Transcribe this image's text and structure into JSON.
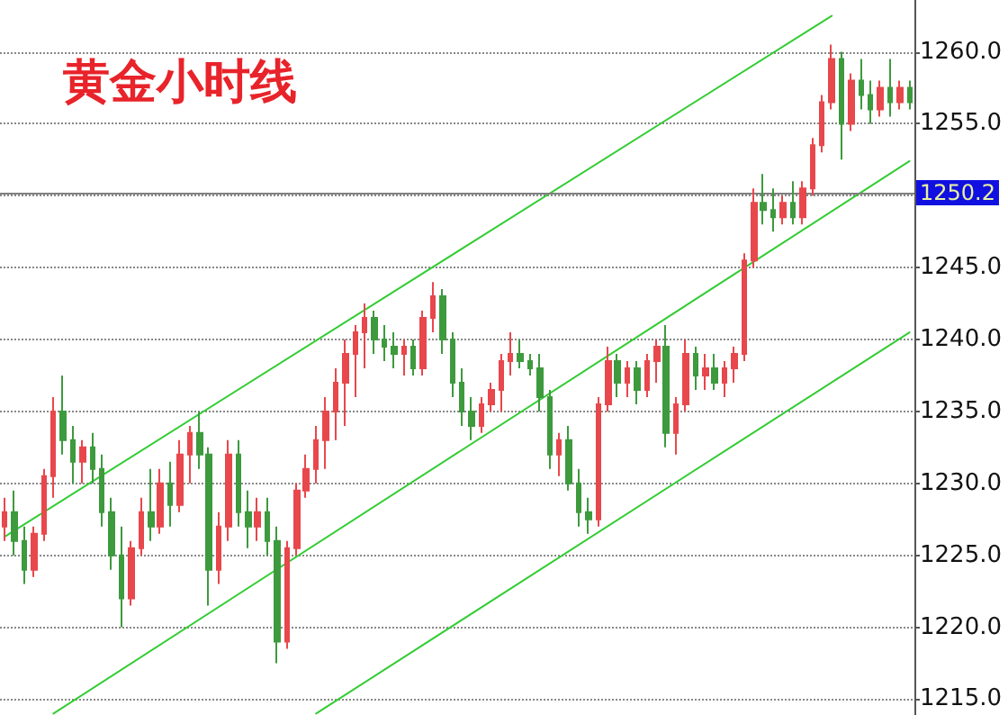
{
  "chart_data": {
    "type": "candlestick",
    "title": "黄金小时线",
    "categories": [
      null,
      null,
      null,
      null,
      null,
      null,
      null,
      null,
      null,
      null,
      null,
      null,
      null,
      null,
      null,
      null,
      null,
      null,
      null,
      null,
      null,
      null,
      null,
      null,
      null,
      null,
      null,
      null,
      null,
      null,
      null,
      null,
      null,
      null,
      null,
      null,
      null,
      null,
      null,
      null,
      null,
      null,
      null,
      null,
      null,
      null,
      null,
      null,
      null,
      null,
      null,
      null,
      null,
      null,
      null,
      null,
      null,
      null,
      null,
      null,
      null,
      null,
      null,
      null,
      null,
      null,
      null,
      null,
      null,
      null,
      null,
      null,
      null,
      null,
      null,
      null,
      null,
      null,
      null,
      null,
      null,
      null,
      null,
      null,
      null,
      null,
      null,
      null,
      null,
      null,
      null,
      null,
      null,
      null
    ],
    "series": [
      {
        "ohlc": [
          [
            1227,
            1229,
            1226,
            1228
          ],
          [
            1228,
            1229.5,
            1225,
            1226
          ],
          [
            1226,
            1227,
            1223,
            1224
          ],
          [
            1224,
            1227,
            1223.5,
            1226.5
          ],
          [
            1226.5,
            1231,
            1226,
            1230.5
          ],
          [
            1230.5,
            1236,
            1229,
            1235
          ],
          [
            1235,
            1237.5,
            1232,
            1233
          ],
          [
            1233,
            1234,
            1230,
            1231.5
          ],
          [
            1231.5,
            1233,
            1230,
            1232.5
          ],
          [
            1232.5,
            1233.5,
            1230,
            1231
          ],
          [
            1231,
            1232,
            1227,
            1228
          ],
          [
            1228,
            1229,
            1224,
            1225
          ],
          [
            1225,
            1227,
            1220,
            1222
          ],
          [
            1222,
            1226,
            1221.5,
            1225.5
          ],
          [
            1225.5,
            1229,
            1225,
            1228
          ],
          [
            1228,
            1231,
            1226,
            1227
          ],
          [
            1227,
            1231,
            1226.5,
            1230
          ],
          [
            1230,
            1231.5,
            1227,
            1228.5
          ],
          [
            1228.5,
            1233,
            1228,
            1232
          ],
          [
            1232,
            1234,
            1230,
            1233.5
          ],
          [
            1233.5,
            1235,
            1231,
            1232
          ],
          [
            1232,
            1232.5,
            1221.5,
            1224
          ],
          [
            1224,
            1228,
            1223,
            1227
          ],
          [
            1227,
            1233,
            1226,
            1232
          ],
          [
            1232,
            1233,
            1227,
            1228
          ],
          [
            1228,
            1229.5,
            1225.5,
            1227
          ],
          [
            1227,
            1229,
            1226,
            1228
          ],
          [
            1228,
            1229,
            1225,
            1226
          ],
          [
            1226,
            1227,
            1217.5,
            1219
          ],
          [
            1219,
            1226,
            1218.5,
            1225.5
          ],
          [
            1225.5,
            1230,
            1225,
            1229.5
          ],
          [
            1229.5,
            1232,
            1229,
            1231
          ],
          [
            1231,
            1234,
            1230,
            1233
          ],
          [
            1233,
            1236,
            1231,
            1235
          ],
          [
            1235,
            1238,
            1233,
            1237
          ],
          [
            1237,
            1240,
            1234,
            1239
          ],
          [
            1239,
            1241,
            1236,
            1240.5
          ],
          [
            1240.5,
            1242.5,
            1238,
            1241.5
          ],
          [
            1241.5,
            1242,
            1239,
            1240
          ],
          [
            1240,
            1241,
            1238.5,
            1239.5
          ],
          [
            1239.5,
            1240.5,
            1238,
            1239
          ],
          [
            1239,
            1240,
            1237.5,
            1239.5
          ],
          [
            1239.5,
            1240,
            1237.5,
            1238
          ],
          [
            1238,
            1242,
            1237.5,
            1241.5
          ],
          [
            1241.5,
            1244,
            1240.5,
            1243
          ],
          [
            1243,
            1243.5,
            1239,
            1240
          ],
          [
            1240,
            1240.5,
            1236,
            1237
          ],
          [
            1237,
            1238,
            1234,
            1235
          ],
          [
            1235,
            1236,
            1233,
            1234
          ],
          [
            1234,
            1236,
            1233.5,
            1235.5
          ],
          [
            1235.5,
            1237,
            1235,
            1236.5
          ],
          [
            1236.5,
            1239,
            1235,
            1238.5
          ],
          [
            1238.5,
            1240.5,
            1237.5,
            1239
          ],
          [
            1239,
            1240,
            1238,
            1238.5
          ],
          [
            1238.5,
            1239,
            1237.5,
            1238
          ],
          [
            1238,
            1239,
            1235,
            1236
          ],
          [
            1236,
            1236.5,
            1231,
            1232
          ],
          [
            1232,
            1233.5,
            1230.5,
            1233
          ],
          [
            1233,
            1234,
            1229.5,
            1230
          ],
          [
            1230,
            1231,
            1227,
            1228
          ],
          [
            1228,
            1229,
            1226.5,
            1227.5
          ],
          [
            1227.5,
            1236,
            1227,
            1235.5
          ],
          [
            1235.5,
            1239.5,
            1235,
            1238.5
          ],
          [
            1238.5,
            1239,
            1236,
            1237
          ],
          [
            1237,
            1238.5,
            1236,
            1238
          ],
          [
            1238,
            1238.5,
            1235.5,
            1236.5
          ],
          [
            1236.5,
            1239,
            1236,
            1238.5
          ],
          [
            1238.5,
            1240,
            1237,
            1239.5
          ],
          [
            1239.5,
            1241,
            1232.5,
            1233.5
          ],
          [
            1233.5,
            1236,
            1232,
            1235.5
          ],
          [
            1235.5,
            1240,
            1235,
            1239
          ],
          [
            1239,
            1239.5,
            1236.5,
            1237.5
          ],
          [
            1237.5,
            1239,
            1236.5,
            1238
          ],
          [
            1238,
            1239,
            1236.5,
            1237
          ],
          [
            1237,
            1238.5,
            1236,
            1238
          ],
          [
            1238,
            1239.5,
            1237,
            1239
          ],
          [
            1239,
            1246,
            1238.5,
            1245.5
          ],
          [
            1245.5,
            1250.5,
            1245,
            1249.5
          ],
          [
            1249.5,
            1251.5,
            1248,
            1249
          ],
          [
            1249,
            1250.5,
            1247.5,
            1248.5
          ],
          [
            1248.5,
            1250,
            1248,
            1249.5
          ],
          [
            1249.5,
            1251,
            1248,
            1248.5
          ],
          [
            1248.5,
            1251,
            1248,
            1250.5
          ],
          [
            1250.5,
            1254,
            1250,
            1253.5
          ],
          [
            1253.5,
            1257,
            1253,
            1256.5
          ],
          [
            1256.5,
            1260.5,
            1256,
            1259.5
          ],
          [
            1259.5,
            1260,
            1252.5,
            1255
          ],
          [
            1255,
            1258.5,
            1254.5,
            1258
          ],
          [
            1258,
            1259.5,
            1256,
            1257
          ],
          [
            1257,
            1258,
            1255,
            1256
          ],
          [
            1256,
            1258,
            1255.5,
            1257.5
          ],
          [
            1257.5,
            1259.5,
            1255.5,
            1256.5
          ],
          [
            1256.5,
            1258,
            1256,
            1257.5
          ],
          [
            1257.5,
            1258,
            1256,
            1256.5
          ]
        ],
        "colors": [
          "#e8474c",
          "#3d9a3d",
          "#3d9a3d",
          "#e8474c",
          "#e8474c",
          "#e8474c",
          "#3d9a3d",
          "#3d9a3d",
          "#e8474c",
          "#3d9a3d",
          "#3d9a3d",
          "#3d9a3d",
          "#3d9a3d",
          "#e8474c",
          "#e8474c",
          "#3d9a3d",
          "#e8474c",
          "#3d9a3d",
          "#e8474c",
          "#e8474c",
          "#3d9a3d",
          "#3d9a3d",
          "#e8474c",
          "#e8474c",
          "#3d9a3d",
          "#3d9a3d",
          "#e8474c",
          "#3d9a3d",
          "#3d9a3d",
          "#e8474c",
          "#e8474c",
          "#e8474c",
          "#e8474c",
          "#e8474c",
          "#e8474c",
          "#e8474c",
          "#e8474c",
          "#e8474c",
          "#3d9a3d",
          "#3d9a3d",
          "#3d9a3d",
          "#e8474c",
          "#3d9a3d",
          "#e8474c",
          "#e8474c",
          "#3d9a3d",
          "#3d9a3d",
          "#3d9a3d",
          "#3d9a3d",
          "#e8474c",
          "#e8474c",
          "#e8474c",
          "#e8474c",
          "#3d9a3d",
          "#3d9a3d",
          "#3d9a3d",
          "#3d9a3d",
          "#e8474c",
          "#3d9a3d",
          "#3d9a3d",
          "#3d9a3d",
          "#e8474c",
          "#e8474c",
          "#3d9a3d",
          "#e8474c",
          "#3d9a3d",
          "#e8474c",
          "#e8474c",
          "#3d9a3d",
          "#e8474c",
          "#e8474c",
          "#3d9a3d",
          "#e8474c",
          "#3d9a3d",
          "#e8474c",
          "#e8474c",
          "#e8474c",
          "#e8474c",
          "#3d9a3d",
          "#3d9a3d",
          "#e8474c",
          "#3d9a3d",
          "#e8474c",
          "#e8474c",
          "#e8474c",
          "#e8474c",
          "#3d9a3d",
          "#e8474c",
          "#3d9a3d",
          "#3d9a3d",
          "#e8474c",
          "#3d9a3d",
          "#e8474c",
          "#3d9a3d"
        ]
      },
      {
        "type": "line",
        "color": "#33cc33",
        "values": [
          1226.3,
          null,
          null,
          null,
          null,
          null,
          null,
          null,
          null,
          null,
          null,
          null,
          null,
          null,
          null,
          null,
          null,
          null,
          null,
          null,
          null,
          null,
          null,
          null,
          null,
          null,
          null,
          null,
          null,
          null,
          null,
          null,
          null,
          null,
          null,
          null,
          null,
          null,
          null,
          null,
          null,
          null,
          null,
          null,
          null,
          null,
          null,
          null,
          null,
          null,
          null,
          null,
          null,
          null,
          null,
          null,
          null,
          null,
          null,
          null,
          null,
          null,
          null,
          null,
          null,
          null,
          null,
          null,
          null,
          null,
          null,
          null,
          null,
          null,
          null,
          null,
          null,
          null,
          null,
          null,
          null,
          null,
          null,
          null,
          null,
          1262.5,
          null,
          null,
          null,
          null,
          null,
          null,
          null,
          null
        ]
      },
      {
        "type": "line",
        "color": "#33cc33",
        "values": [
          null,
          null,
          null,
          null,
          null,
          1214.0,
          null,
          null,
          null,
          null,
          null,
          null,
          null,
          null,
          null,
          null,
          null,
          null,
          null,
          null,
          null,
          null,
          null,
          null,
          null,
          null,
          null,
          null,
          null,
          null,
          null,
          null,
          null,
          null,
          null,
          null,
          null,
          null,
          null,
          null,
          null,
          null,
          null,
          null,
          null,
          null,
          null,
          null,
          null,
          null,
          null,
          null,
          null,
          null,
          null,
          null,
          null,
          null,
          null,
          null,
          null,
          null,
          null,
          null,
          null,
          null,
          null,
          null,
          null,
          null,
          null,
          null,
          null,
          null,
          null,
          null,
          null,
          null,
          null,
          null,
          null,
          null,
          null,
          null,
          null,
          null,
          null,
          null,
          null,
          null,
          null,
          null,
          null,
          1252.4
        ]
      },
      {
        "type": "line",
        "color": "#33cc33",
        "values": [
          null,
          null,
          null,
          null,
          null,
          null,
          null,
          null,
          null,
          null,
          null,
          null,
          null,
          null,
          null,
          null,
          null,
          null,
          null,
          null,
          null,
          null,
          null,
          null,
          null,
          null,
          null,
          null,
          null,
          null,
          null,
          null,
          1214.0,
          null,
          null,
          null,
          null,
          null,
          null,
          null,
          null,
          null,
          null,
          null,
          null,
          null,
          null,
          null,
          null,
          null,
          null,
          null,
          null,
          null,
          null,
          null,
          null,
          null,
          null,
          null,
          null,
          null,
          null,
          null,
          null,
          null,
          null,
          null,
          null,
          null,
          null,
          null,
          null,
          null,
          null,
          null,
          null,
          null,
          null,
          null,
          null,
          null,
          null,
          null,
          null,
          null,
          null,
          null,
          null,
          null,
          null,
          null,
          null,
          1240.5
        ]
      }
    ],
    "ylim": [
      1213.9,
      1263.6
    ],
    "yticks": [
      {
        "value": 1215,
        "label": "1215.0"
      },
      {
        "value": 1220,
        "label": "1220.0"
      },
      {
        "value": 1225,
        "label": "1225.0"
      },
      {
        "value": 1230,
        "label": "1230.0"
      },
      {
        "value": 1235,
        "label": "1235.0"
      },
      {
        "value": 1240,
        "label": "1240.0"
      },
      {
        "value": 1245,
        "label": "1245.0"
      },
      {
        "value": 1250,
        "label": null
      },
      {
        "value": 1255,
        "label": "1255.0"
      },
      {
        "value": 1260,
        "label": "1260.0"
      }
    ],
    "ref_lines": [
      {
        "axis": "y",
        "value": 1250.2,
        "label": "1250.2",
        "color": "#808080"
      }
    ],
    "grid": "y",
    "tick_labels": "y",
    "line_style": "solid"
  }
}
